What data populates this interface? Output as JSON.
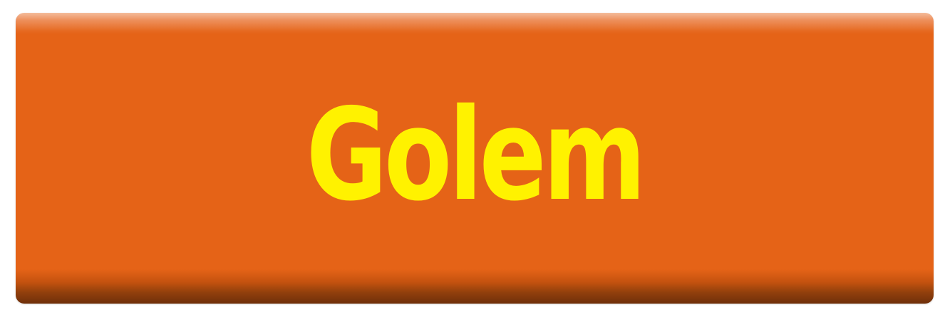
{
  "button": {
    "label": "Golem",
    "colors": {
      "face": "#e56317",
      "highlight": "#f0a57a",
      "shadow": "#6f300a",
      "text": "#fff200"
    }
  }
}
